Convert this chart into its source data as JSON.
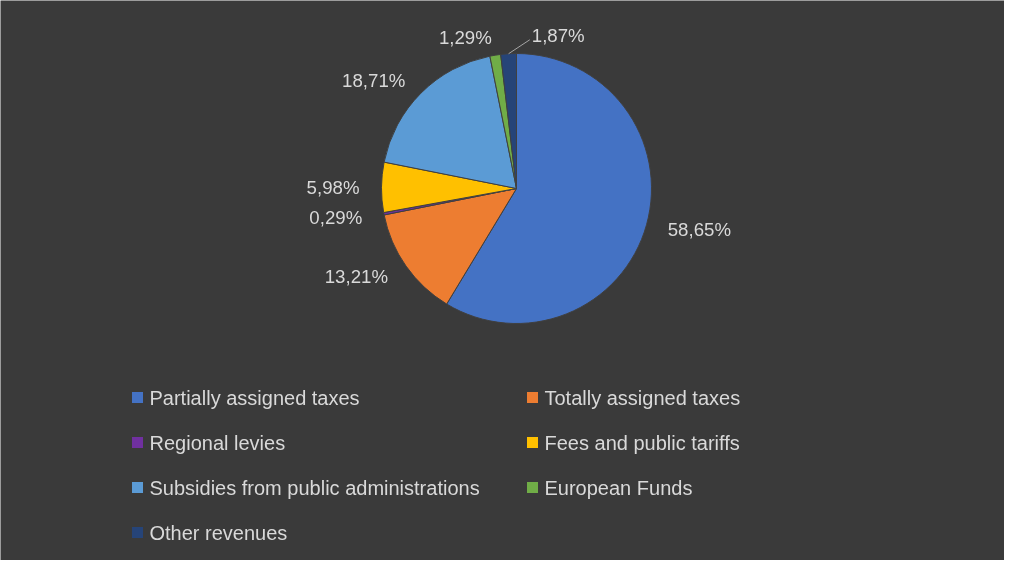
{
  "chart_data": {
    "type": "pie",
    "categories": [
      "Partially assigned taxes",
      "Totally  assigned taxes",
      "Regional levies",
      "Fees and public tariffs",
      "Subsidies from public administrations",
      "European Funds",
      "Other revenues"
    ],
    "values": [
      58.65,
      13.21,
      0.29,
      5.98,
      18.71,
      1.29,
      1.87
    ],
    "value_labels": [
      "58,65%",
      "13,21%",
      "0,29%",
      "5,98%",
      "18,71%",
      "1,29%",
      "1,87%"
    ],
    "colors": [
      "#4472c4",
      "#ed7d31",
      "#7030a0",
      "#ffc000",
      "#5b9bd5",
      "#70ad47",
      "#264478"
    ],
    "legend": "bottom"
  }
}
